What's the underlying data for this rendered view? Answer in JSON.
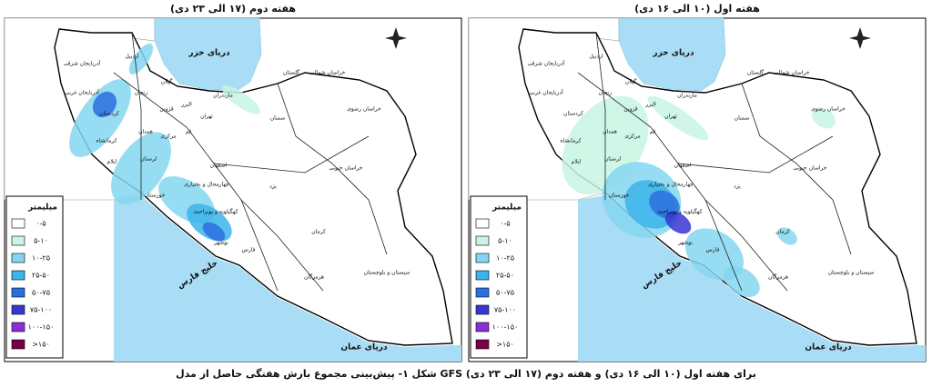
{
  "maps": [
    {
      "title": "هفته دوم (۱۷ الی ۲۳ دی)"
    },
    {
      "title": "هفته اول (۱۰ الی ۱۶ دی)"
    }
  ],
  "legend": {
    "title": "میلیمتر",
    "items": [
      {
        "label": "۰-۵",
        "color": "#ffffff"
      },
      {
        "label": "۵-۱۰",
        "color": "#c8f5e4"
      },
      {
        "label": "۱۰-۲۵",
        "color": "#84d6f0"
      },
      {
        "label": "۲۵-۵۰",
        "color": "#3cb4ea"
      },
      {
        "label": "۵۰-۷۵",
        "color": "#2b6fdf"
      },
      {
        "label": "۷۵-۱۰۰",
        "color": "#3636d2"
      },
      {
        "label": "۱۰۰-۱۵۰",
        "color": "#8a2fd6"
      },
      {
        "label": ">۱۵۰",
        "color": "#780046"
      }
    ]
  },
  "seas": [
    "دریای خزر",
    "خلیج فارس",
    "دریای عمان"
  ],
  "provinces": [
    "آذربایجان شرقی",
    "اردبیل",
    "آذربایجان غربی",
    "زنجان",
    "گیلان",
    "مازندران",
    "گلستان",
    "خراسان شمالی",
    "خراسان رضوی",
    "قزوین",
    "البرز",
    "تهران",
    "سمنان",
    "کردستان",
    "همدان",
    "کرمانشاه",
    "مرکزی",
    "قم",
    "لرستان",
    "ایلام",
    "اصفهان",
    "خوزستان",
    "چهارمحال و بختیاری",
    "کهگیلویه و بویراحمد",
    "یزد",
    "خراسان جنوبی",
    "فارس",
    "بوشهر",
    "کرمان",
    "هرمزگان",
    "سیستان و بلوچستان"
  ],
  "caption": "شکل ۱- پیش‌بینی مجموع بارش هفتگی حاصل از مدل GFS برای هفته اول (۱۰ الی ۱۶ دی) و هفته دوم (۱۷ الی ۲۳ دی)"
}
